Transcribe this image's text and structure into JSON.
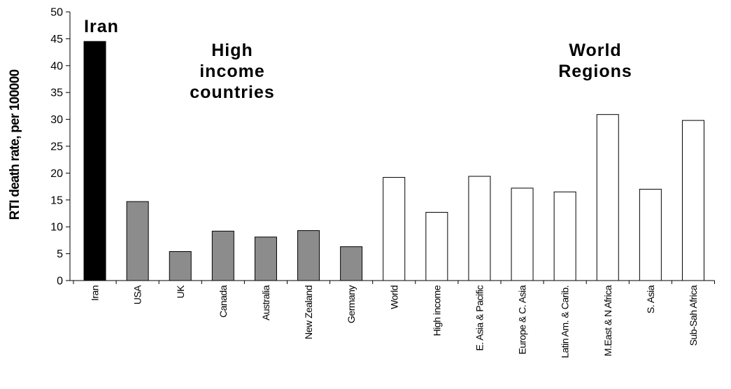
{
  "chart_data": {
    "type": "bar",
    "title": "",
    "xlabel": "",
    "ylabel": "RTI death rate, per 100000",
    "ylim": [
      0,
      50
    ],
    "yticks": [
      0,
      5,
      10,
      15,
      20,
      25,
      30,
      35,
      40,
      45,
      50
    ],
    "grid": false,
    "categories": [
      "Iran",
      "USA",
      "UK",
      "Canada",
      "Australia",
      "New Zealand",
      "Germany",
      "World",
      "High income",
      "E. Asia & Pacific",
      "Europe & C. Asia",
      "Latin Am. & Carib.",
      "M.East & N Africa",
      "S. Asia",
      "Sub-Sah Africa"
    ],
    "values": [
      44.5,
      14.7,
      5.4,
      9.2,
      8.1,
      9.3,
      6.3,
      19.2,
      12.7,
      19.4,
      17.2,
      16.5,
      30.9,
      17.0,
      29.8
    ],
    "groups": [
      "iran",
      "high-income",
      "high-income",
      "high-income",
      "high-income",
      "high-income",
      "high-income",
      "region",
      "region",
      "region",
      "region",
      "region",
      "region",
      "region",
      "region"
    ],
    "group_colors": {
      "iran": "#000000",
      "high-income": "#8c8c8c",
      "region": "#ffffff"
    },
    "annotations": [
      {
        "id": "iran",
        "lines": [
          "Iran"
        ]
      },
      {
        "id": "high-income",
        "lines": [
          "High",
          "income",
          "countries"
        ]
      },
      {
        "id": "regions",
        "lines": [
          "World",
          "Regions"
        ]
      }
    ]
  }
}
